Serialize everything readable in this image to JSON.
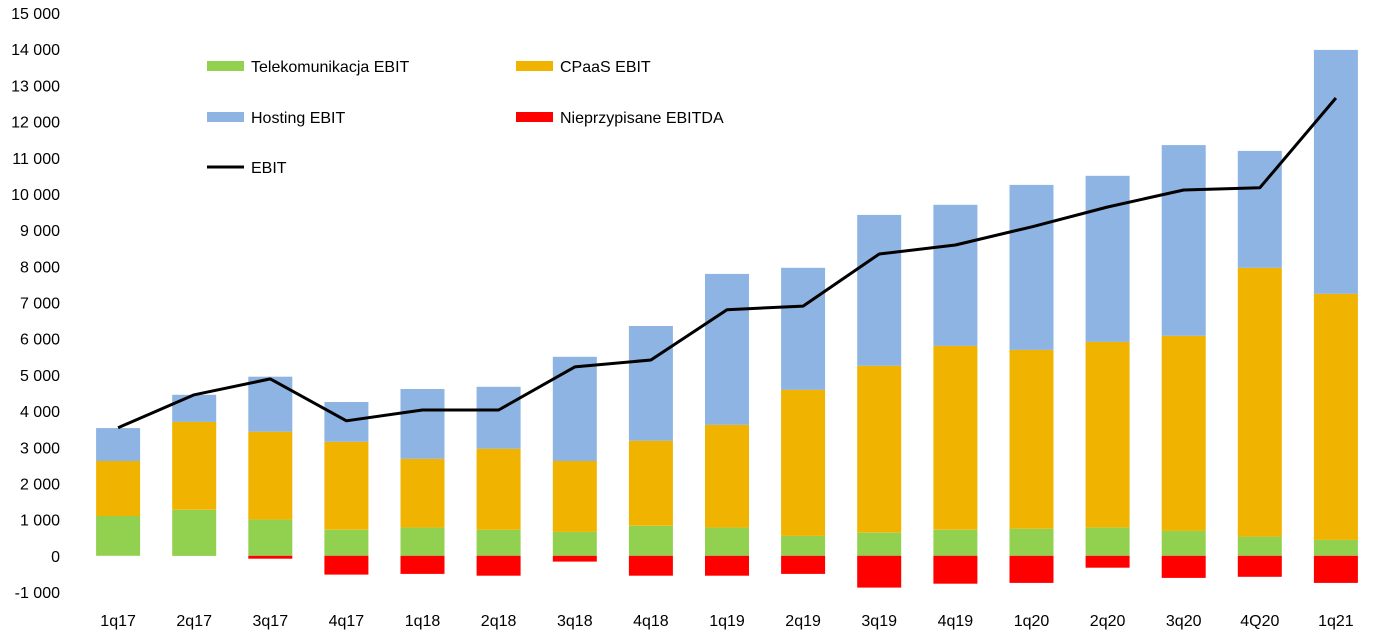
{
  "chart_data": {
    "type": "bar",
    "stacked": true,
    "categories": [
      "1q17",
      "2q17",
      "3q17",
      "4q17",
      "1q18",
      "2q18",
      "3q18",
      "4q18",
      "1q19",
      "2q19",
      "3q19",
      "4q19",
      "1q20",
      "2q20",
      "3q20",
      "4Q20",
      "1q21"
    ],
    "series": [
      {
        "name": "Telekomunikacja EBIT",
        "type": "bar",
        "color": "#92D050",
        "values": [
          1100,
          1270,
          1000,
          720,
          780,
          720,
          660,
          830,
          780,
          550,
          640,
          720,
          750,
          780,
          690,
          530,
          440
        ]
      },
      {
        "name": "CPaaS EBIT",
        "type": "bar",
        "color": "#F0B400",
        "values": [
          1520,
          2430,
          2430,
          2430,
          1900,
          2240,
          1960,
          2350,
          2840,
          4040,
          4610,
          5080,
          4940,
          5130,
          5390,
          7430,
          6800
        ]
      },
      {
        "name": "Hosting EBIT",
        "type": "bar",
        "color": "#8DB4E2",
        "values": [
          910,
          750,
          1520,
          1100,
          1930,
          1710,
          2880,
          3170,
          4170,
          3370,
          4170,
          3900,
          4560,
          4590,
          5270,
          3230,
          6740
        ]
      },
      {
        "name": "Nieprzypisane EBITDA",
        "type": "bar",
        "color": "#FF0000",
        "values": [
          0,
          0,
          -80,
          -520,
          -500,
          -550,
          -160,
          -550,
          -550,
          -500,
          -880,
          -770,
          -750,
          -330,
          -610,
          -580,
          -750
        ]
      },
      {
        "name": "EBIT",
        "type": "line",
        "color": "#000000",
        "values": [
          3540,
          4450,
          4890,
          3730,
          4030,
          4030,
          5220,
          5410,
          6800,
          6900,
          8340,
          8590,
          9090,
          9640,
          10110,
          10170,
          12650
        ]
      }
    ],
    "ylim": [
      -1000,
      15000
    ],
    "yticks": [
      -1000,
      0,
      1000,
      2000,
      3000,
      4000,
      5000,
      6000,
      7000,
      8000,
      9000,
      10000,
      11000,
      12000,
      13000,
      14000,
      15000
    ],
    "ytick_labels": [
      "-1 000",
      "0",
      "1 000",
      "2 000",
      "3 000",
      "4 000",
      "5 000",
      "6 000",
      "7 000",
      "8 000",
      "9 000",
      "10 000",
      "11 000",
      "12 000",
      "13 000",
      "14 000",
      "15 000"
    ],
    "grid": false,
    "legend": "top-left"
  }
}
